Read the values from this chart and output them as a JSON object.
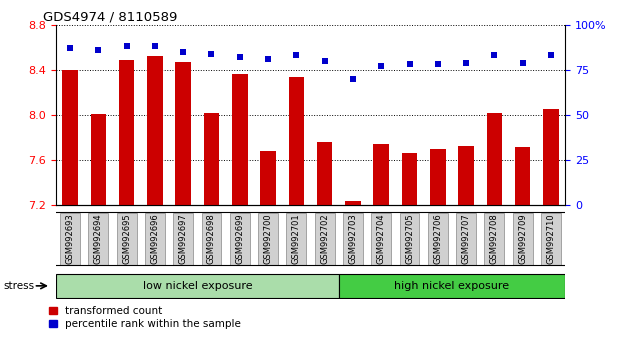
{
  "title": "GDS4974 / 8110589",
  "samples": [
    "GSM992693",
    "GSM992694",
    "GSM992695",
    "GSM992696",
    "GSM992697",
    "GSM992698",
    "GSM992699",
    "GSM992700",
    "GSM992701",
    "GSM992702",
    "GSM992703",
    "GSM992704",
    "GSM992705",
    "GSM992706",
    "GSM992707",
    "GSM992708",
    "GSM992709",
    "GSM992710"
  ],
  "bar_values": [
    8.4,
    8.01,
    8.49,
    8.52,
    8.47,
    8.02,
    8.36,
    7.68,
    8.34,
    7.76,
    7.24,
    7.74,
    7.66,
    7.7,
    7.73,
    8.02,
    7.72,
    8.05
  ],
  "percentile_values": [
    87,
    86,
    88,
    88,
    85,
    84,
    82,
    81,
    83,
    80,
    70,
    77,
    78,
    78,
    79,
    83,
    79,
    83
  ],
  "bar_color": "#cc0000",
  "dot_color": "#0000cc",
  "ylim_left": [
    7.2,
    8.8
  ],
  "ylim_right": [
    0,
    100
  ],
  "yticks_left": [
    7.2,
    7.6,
    8.0,
    8.4,
    8.8
  ],
  "yticks_right": [
    0,
    25,
    50,
    75,
    100
  ],
  "group1_label": "low nickel exposure",
  "group2_label": "high nickel exposure",
  "group1_count": 10,
  "group2_count": 8,
  "stress_label": "stress",
  "legend_bar": "transformed count",
  "legend_dot": "percentile rank within the sample",
  "bar_width": 0.55,
  "group1_color": "#aaddaa",
  "group2_color": "#44cc44",
  "tick_label_bg": "#d0d0d0",
  "tick_label_edge": "#888888"
}
